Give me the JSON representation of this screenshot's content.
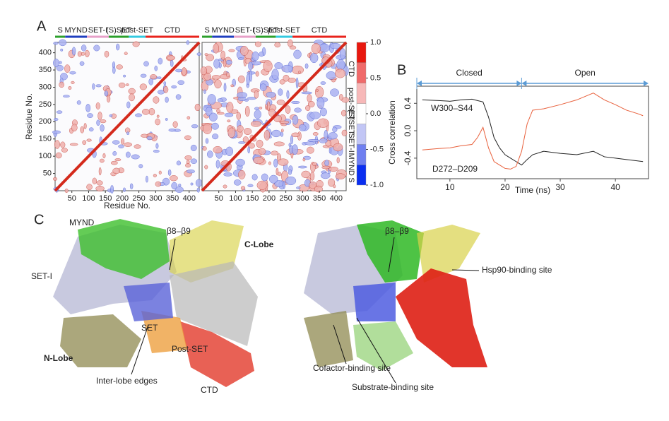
{
  "panel_a": {
    "label": "A",
    "domains": [
      "S",
      "MYND",
      "SET-I",
      "(S)SET",
      "post-SET",
      "CTD"
    ],
    "domain_colors": [
      "#2ca02c",
      "#1f3fbf",
      "#e7a0c8",
      "#2ca02c",
      "#33c9e0",
      "#e8231c"
    ],
    "lim": [
      0,
      430
    ],
    "xticks": [
      50,
      100,
      150,
      200,
      250,
      300,
      350,
      400
    ],
    "yticks": [
      50,
      100,
      150,
      200,
      250,
      300,
      350,
      400
    ],
    "xlabel": "Residue No.",
    "ylabel": "Residue No.",
    "colorbar": {
      "lim": [
        -1,
        1
      ],
      "ticks": [
        {
          "value": 1,
          "label": "1.0"
        },
        {
          "value": 0.5,
          "label": "0.5"
        },
        {
          "value": 0,
          "label": "0.0"
        },
        {
          "value": -0.5,
          "label": "-0.5"
        },
        {
          "value": -1,
          "label": "-1.0"
        }
      ],
      "colors": [
        "#0a2ef0",
        "#6f7ff0",
        "#c2c6f5",
        "#ffffff",
        "#f7b8b8",
        "#f06a6a",
        "#e8180f"
      ]
    }
  },
  "chart_data": {
    "type": "line",
    "panel_label": "B",
    "x": [
      5,
      8,
      10,
      12,
      14,
      15,
      16,
      17,
      18,
      19,
      20,
      21,
      22,
      23,
      24,
      25,
      27,
      30,
      33,
      36,
      38,
      40,
      42,
      44,
      45
    ],
    "series": [
      {
        "name": "W300–S44",
        "color": "#222222",
        "values": [
          0.45,
          0.44,
          0.43,
          0.45,
          0.46,
          0.44,
          0.42,
          0.2,
          -0.1,
          -0.25,
          -0.35,
          -0.4,
          -0.45,
          -0.5,
          -0.42,
          -0.35,
          -0.3,
          -0.33,
          -0.35,
          -0.3,
          -0.38,
          -0.4,
          -0.42,
          -0.44,
          -0.45
        ]
      },
      {
        "name": "D272–D209",
        "color": "#e8603c",
        "values": [
          -0.28,
          -0.26,
          -0.25,
          -0.22,
          -0.2,
          -0.1,
          0.05,
          -0.25,
          -0.45,
          -0.5,
          -0.55,
          -0.56,
          -0.52,
          -0.3,
          0.1,
          0.3,
          0.32,
          0.38,
          0.45,
          0.55,
          0.45,
          0.38,
          0.3,
          0.25,
          0.22
        ]
      }
    ],
    "phases": [
      {
        "label": "Closed",
        "range": [
          4,
          23
        ]
      },
      {
        "label": "Open",
        "range": [
          23,
          46
        ]
      }
    ],
    "xlim": [
      4,
      46
    ],
    "ylim": [
      -0.7,
      0.65
    ],
    "xticks": [
      10,
      20,
      30,
      40
    ],
    "yticks": [
      {
        "value": 0.4,
        "label": "0.4"
      },
      {
        "value": 0,
        "label": "0.0"
      },
      {
        "value": -0.4,
        "label": "-0.4"
      }
    ],
    "xlabel": "Time (ns)",
    "ylabel": "Cross correlation"
  },
  "panel_c": {
    "label": "C",
    "left": [
      "MYND",
      "β8–β9",
      "C-Lobe",
      "SET-I",
      "SET",
      "N-Lobe",
      "Post-SET",
      "Inter-lobe edges",
      "CTD"
    ],
    "right": [
      "β8–β9",
      "Hsp90-binding site",
      "Cofactor-binding site",
      "Substrate-binding site"
    ]
  }
}
